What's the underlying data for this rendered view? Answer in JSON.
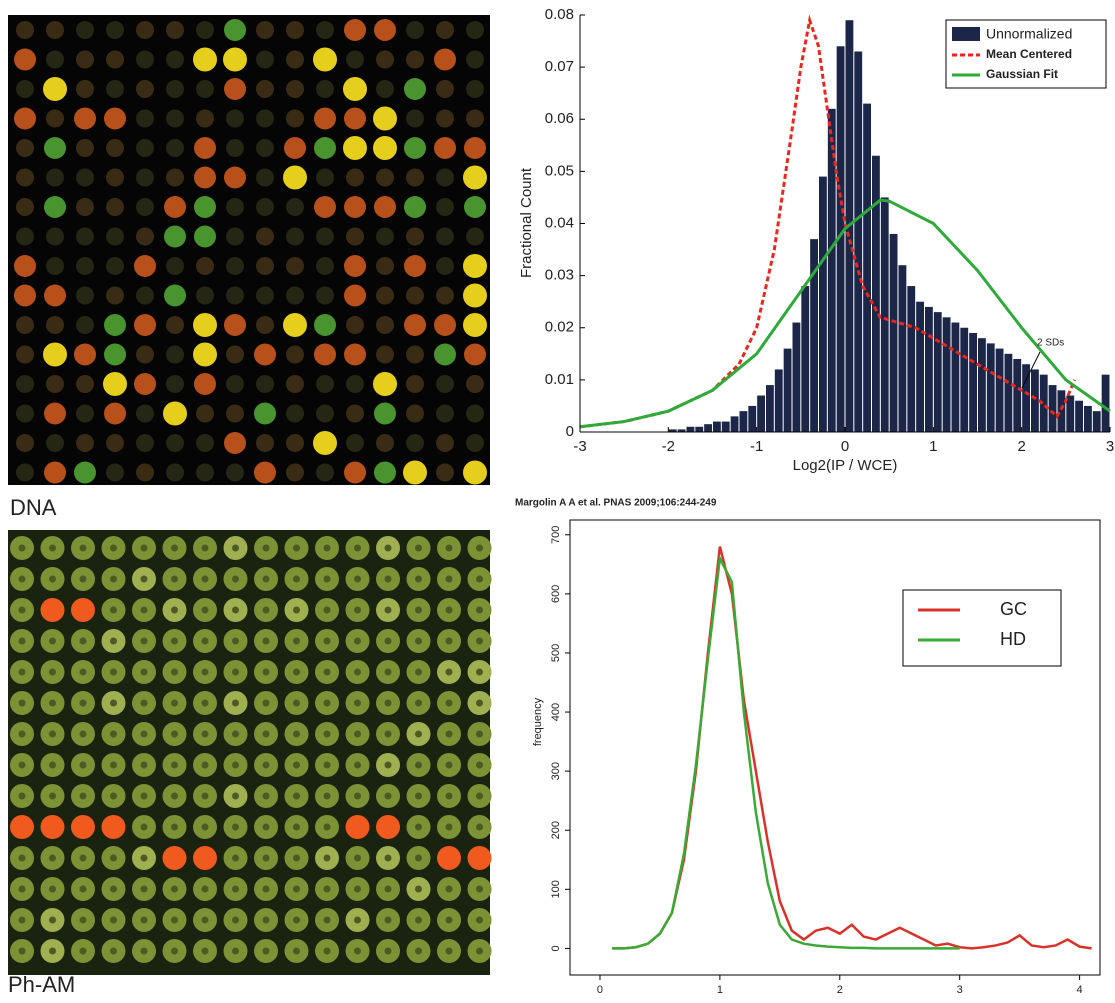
{
  "panels": {
    "dna_label": "DNA",
    "pham_label": "Ph-AM",
    "citation": "Margolin A A et al. PNAS 2009;106:244-249"
  },
  "chart_data": [
    {
      "type": "histogram",
      "x_label": "Log2(IP / WCE)",
      "y_label": "Fractional Count",
      "bins": [
        -3,
        -2.9,
        -2.8,
        -2.7,
        -2.6,
        -2.5,
        -2.4,
        -2.3,
        -2.2,
        -2.1,
        -2,
        -1.9,
        -1.8,
        -1.7,
        -1.6,
        -1.5,
        -1.4,
        -1.3,
        -1.2,
        -1.1,
        -1,
        -0.9,
        -0.8,
        -0.7,
        -0.6,
        -0.5,
        -0.4,
        -0.3,
        -0.2,
        -0.1,
        0,
        0.1,
        0.2,
        0.3,
        0.4,
        0.5,
        0.6,
        0.7,
        0.8,
        0.9,
        1,
        1.1,
        1.2,
        1.3,
        1.4,
        1.5,
        1.6,
        1.7,
        1.8,
        1.9,
        2,
        2.1,
        2.2,
        2.3,
        2.4,
        2.5,
        2.6,
        2.7,
        2.8,
        2.9,
        3
      ],
      "series": [
        {
          "name": "Unnormalized",
          "color": "#1c2648",
          "values": [
            0,
            0,
            0,
            0,
            0,
            0,
            0,
            0,
            0,
            0,
            0.0005,
            0.0005,
            0.001,
            0.001,
            0.0015,
            0.002,
            0.002,
            0.003,
            0.004,
            0.005,
            0.007,
            0.009,
            0.012,
            0.016,
            0.021,
            0.028,
            0.037,
            0.049,
            0.062,
            0.074,
            0.079,
            0.073,
            0.063,
            0.053,
            0.045,
            0.038,
            0.032,
            0.028,
            0.025,
            0.024,
            0.023,
            0.022,
            0.021,
            0.02,
            0.019,
            0.018,
            0.017,
            0.016,
            0.015,
            0.014,
            0.013,
            0.012,
            0.011,
            0.009,
            0.008,
            0.007,
            0.006,
            0.005,
            0.004,
            0.011
          ]
        }
      ],
      "lines": [
        {
          "name": "Mean Centered",
          "color": "#e8281e",
          "style": "dashed",
          "x": [
            -3,
            -2.5,
            -2,
            -1.5,
            -1.2,
            -1,
            -0.8,
            -0.6,
            -0.5,
            -0.4,
            -0.3,
            -0.2,
            -0.1,
            0,
            0.2,
            0.4,
            0.6,
            0.8,
            1,
            1.2,
            1.4,
            1.6,
            1.8,
            2,
            2.2,
            2.4,
            2.5,
            2.6
          ],
          "values": [
            0.001,
            0.002,
            0.004,
            0.008,
            0.013,
            0.02,
            0.035,
            0.058,
            0.07,
            0.079,
            0.074,
            0.062,
            0.05,
            0.04,
            0.028,
            0.022,
            0.021,
            0.02,
            0.018,
            0.016,
            0.014,
            0.012,
            0.01,
            0.008,
            0.006,
            0.003,
            0.006,
            0.01
          ]
        },
        {
          "name": "Gaussian Fit",
          "color": "#2eaa3a",
          "style": "solid",
          "x": [
            -3,
            -2.5,
            -2,
            -1.5,
            -1,
            -0.5,
            0,
            0.4,
            0.5,
            1,
            1.5,
            2,
            2.5,
            3
          ],
          "values": [
            0.001,
            0.002,
            0.004,
            0.008,
            0.015,
            0.027,
            0.039,
            0.0445,
            0.0443,
            0.04,
            0.031,
            0.02,
            0.01,
            0.004
          ]
        }
      ],
      "xlim": [
        -3,
        3
      ],
      "ylim": [
        0,
        0.08
      ],
      "xticks": [
        -3,
        -2,
        -1,
        0,
        1,
        2,
        3
      ],
      "yticks": [
        0,
        0.01,
        0.02,
        0.03,
        0.04,
        0.05,
        0.06,
        0.07,
        0.08
      ],
      "legend": "upper right",
      "annotation": "2 SDs"
    },
    {
      "type": "line",
      "y_label": "frequency",
      "x": [
        0.1,
        0.2,
        0.3,
        0.4,
        0.5,
        0.6,
        0.7,
        0.8,
        0.9,
        1,
        1.1,
        1.2,
        1.3,
        1.4,
        1.5,
        1.6,
        1.7,
        1.8,
        1.9,
        2,
        2.1,
        2.2,
        2.3,
        2.4,
        2.5,
        2.6,
        2.7,
        2.8,
        2.9,
        3,
        3.1,
        3.2,
        3.3,
        3.4,
        3.5,
        3.6,
        3.7,
        3.8,
        3.9,
        4,
        4.1
      ],
      "series": [
        {
          "name": "GC",
          "color": "#d8322a",
          "values": [
            0,
            0,
            2,
            8,
            25,
            60,
            150,
            300,
            500,
            680,
            600,
            420,
            300,
            180,
            80,
            30,
            15,
            30,
            35,
            25,
            40,
            20,
            15,
            25,
            35,
            25,
            15,
            5,
            8,
            2,
            0,
            2,
            5,
            10,
            22,
            5,
            2,
            5,
            15,
            3,
            0
          ]
        },
        {
          "name": "HD",
          "color": "#3aaa35",
          "values": [
            0,
            0,
            2,
            8,
            25,
            60,
            160,
            310,
            490,
            660,
            620,
            400,
            230,
            110,
            40,
            15,
            8,
            5,
            3,
            2,
            1,
            1,
            0,
            0,
            0,
            0,
            0,
            0,
            0,
            0,
            null,
            null,
            null,
            null,
            null,
            null,
            null,
            null,
            null,
            null,
            null
          ]
        }
      ],
      "xlim": [
        -0.25,
        4.17
      ],
      "ylim": [
        -45,
        725
      ],
      "xticks": [
        0,
        1,
        2,
        3,
        4
      ],
      "yticks": [
        0,
        100,
        200,
        300,
        400,
        500,
        600,
        700
      ],
      "legend": "upper right"
    }
  ]
}
